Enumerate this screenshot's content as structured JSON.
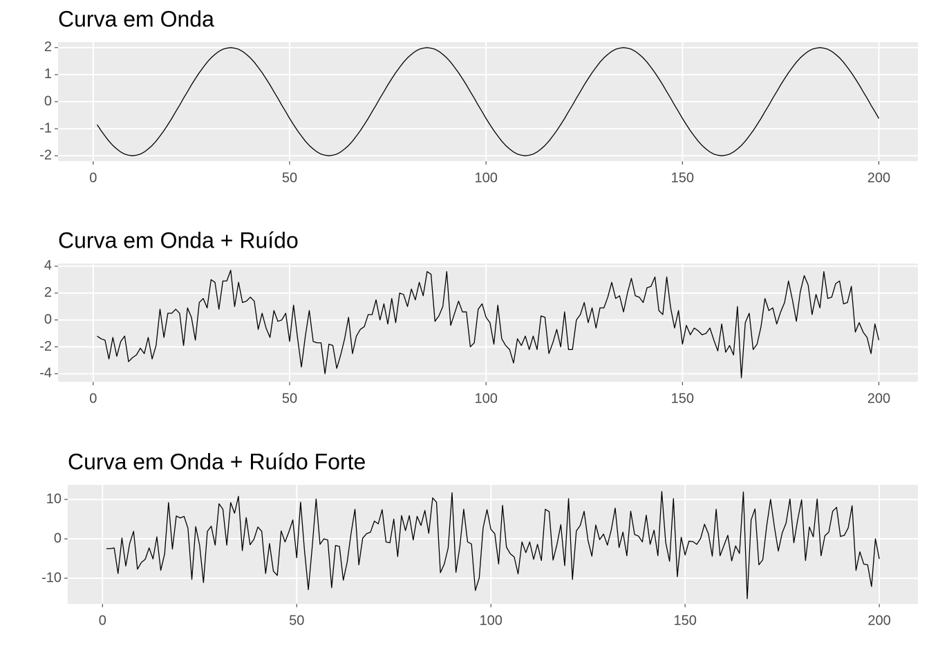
{
  "chart_data": [
    {
      "type": "line",
      "title": "Curva em Onda",
      "color": "#000000",
      "grid": true,
      "xlim": [
        -8.95,
        209.95
      ],
      "ylim": [
        -2.2,
        2.2
      ],
      "xticks": [
        0,
        50,
        100,
        150,
        200
      ],
      "yticks": [
        -2,
        -1,
        0,
        1,
        2
      ],
      "x": [
        1,
        2,
        3,
        4,
        5,
        6,
        7,
        8,
        9,
        10,
        11,
        12,
        13,
        14,
        15,
        16,
        17,
        18,
        19,
        20,
        21,
        22,
        23,
        24,
        25,
        26,
        27,
        28,
        29,
        30,
        31,
        32,
        33,
        34,
        35,
        36,
        37,
        38,
        39,
        40,
        41,
        42,
        43,
        44,
        45,
        46,
        47,
        48,
        49,
        50,
        51,
        52,
        53,
        54,
        55,
        56,
        57,
        58,
        59,
        60,
        61,
        62,
        63,
        64,
        65,
        66,
        67,
        68,
        69,
        70,
        71,
        72,
        73,
        74,
        75,
        76,
        77,
        78,
        79,
        80,
        81,
        82,
        83,
        84,
        85,
        86,
        87,
        88,
        89,
        90,
        91,
        92,
        93,
        94,
        95,
        96,
        97,
        98,
        99,
        100,
        101,
        102,
        103,
        104,
        105,
        106,
        107,
        108,
        109,
        110,
        111,
        112,
        113,
        114,
        115,
        116,
        117,
        118,
        119,
        120,
        121,
        122,
        123,
        124,
        125,
        126,
        127,
        128,
        129,
        130,
        131,
        132,
        133,
        134,
        135,
        136,
        137,
        138,
        139,
        140,
        141,
        142,
        143,
        144,
        145,
        146,
        147,
        148,
        149,
        150,
        151,
        152,
        153,
        154,
        155,
        156,
        157,
        158,
        159,
        160,
        161,
        162,
        163,
        164,
        165,
        166,
        167,
        168,
        169,
        170,
        171,
        172,
        173,
        174,
        175,
        176,
        177,
        178,
        179,
        180,
        181,
        182,
        183,
        184,
        185,
        186,
        187,
        188,
        189,
        190,
        191,
        192,
        193,
        194,
        195,
        196,
        197,
        198,
        199,
        200
      ],
      "values": [
        -0.85,
        -1.07,
        -1.27,
        -1.46,
        -1.62,
        -1.75,
        -1.86,
        -1.94,
        -1.98,
        -2,
        -1.98,
        -1.94,
        -1.86,
        -1.75,
        -1.62,
        -1.46,
        -1.27,
        -1.07,
        -0.85,
        -0.62,
        -0.37,
        -0.13,
        0.13,
        0.37,
        0.62,
        0.85,
        1.07,
        1.27,
        1.46,
        1.62,
        1.75,
        1.86,
        1.94,
        1.98,
        2,
        1.98,
        1.94,
        1.86,
        1.75,
        1.62,
        1.46,
        1.27,
        1.07,
        0.85,
        0.62,
        0.37,
        0.13,
        -0.13,
        -0.37,
        -0.62,
        -0.85,
        -1.07,
        -1.27,
        -1.46,
        -1.62,
        -1.75,
        -1.86,
        -1.94,
        -1.98,
        -2,
        -1.98,
        -1.94,
        -1.86,
        -1.75,
        -1.62,
        -1.46,
        -1.27,
        -1.07,
        -0.85,
        -0.62,
        -0.37,
        -0.13,
        0.13,
        0.37,
        0.62,
        0.85,
        1.07,
        1.27,
        1.46,
        1.62,
        1.75,
        1.86,
        1.94,
        1.98,
        2,
        1.98,
        1.94,
        1.86,
        1.75,
        1.62,
        1.46,
        1.27,
        1.07,
        0.85,
        0.62,
        0.37,
        0.13,
        -0.13,
        -0.37,
        -0.62,
        -0.85,
        -1.07,
        -1.27,
        -1.46,
        -1.62,
        -1.75,
        -1.86,
        -1.94,
        -1.98,
        -2,
        -1.98,
        -1.94,
        -1.86,
        -1.75,
        -1.62,
        -1.46,
        -1.27,
        -1.07,
        -0.85,
        -0.62,
        -0.37,
        -0.13,
        0.13,
        0.37,
        0.62,
        0.85,
        1.07,
        1.27,
        1.46,
        1.62,
        1.75,
        1.86,
        1.94,
        1.98,
        2,
        1.98,
        1.94,
        1.86,
        1.75,
        1.62,
        1.46,
        1.27,
        1.07,
        0.85,
        0.62,
        0.37,
        0.13,
        -0.13,
        -0.37,
        -0.62,
        -0.85,
        -1.07,
        -1.27,
        -1.46,
        -1.62,
        -1.75,
        -1.86,
        -1.94,
        -1.98,
        -2,
        -1.98,
        -1.94,
        -1.86,
        -1.75,
        -1.62,
        -1.46,
        -1.27,
        -1.07,
        -0.85,
        -0.62,
        -0.37,
        -0.13,
        0.13,
        0.37,
        0.62,
        0.85,
        1.07,
        1.27,
        1.46,
        1.62,
        1.75,
        1.86,
        1.94,
        1.98,
        2,
        1.98,
        1.94,
        1.86,
        1.75,
        1.62,
        1.46,
        1.27,
        1.07,
        0.85,
        0.62,
        0.37,
        0.13,
        -0.13,
        -0.37,
        -0.62
      ]
    },
    {
      "type": "line",
      "title": "Curva em Onda  + Ruído",
      "color": "#000000",
      "grid": true,
      "xlim": [
        -8.95,
        209.95
      ],
      "ylim": [
        -4.6,
        4.2
      ],
      "xticks": [
        0,
        50,
        100,
        150,
        200
      ],
      "yticks": [
        -4,
        -2,
        0,
        2,
        4
      ],
      "x": [
        1,
        2,
        3,
        4,
        5,
        6,
        7,
        8,
        9,
        10,
        11,
        12,
        13,
        14,
        15,
        16,
        17,
        18,
        19,
        20,
        21,
        22,
        23,
        24,
        25,
        26,
        27,
        28,
        29,
        30,
        31,
        32,
        33,
        34,
        35,
        36,
        37,
        38,
        39,
        40,
        41,
        42,
        43,
        44,
        45,
        46,
        47,
        48,
        49,
        50,
        51,
        52,
        53,
        54,
        55,
        56,
        57,
        58,
        59,
        60,
        61,
        62,
        63,
        64,
        65,
        66,
        67,
        68,
        69,
        70,
        71,
        72,
        73,
        74,
        75,
        76,
        77,
        78,
        79,
        80,
        81,
        82,
        83,
        84,
        85,
        86,
        87,
        88,
        89,
        90,
        91,
        92,
        93,
        94,
        95,
        96,
        97,
        98,
        99,
        100,
        101,
        102,
        103,
        104,
        105,
        106,
        107,
        108,
        109,
        110,
        111,
        112,
        113,
        114,
        115,
        116,
        117,
        118,
        119,
        120,
        121,
        122,
        123,
        124,
        125,
        126,
        127,
        128,
        129,
        130,
        131,
        132,
        133,
        134,
        135,
        136,
        137,
        138,
        139,
        140,
        141,
        142,
        143,
        144,
        145,
        146,
        147,
        148,
        149,
        150,
        151,
        152,
        153,
        154,
        155,
        156,
        157,
        158,
        159,
        160,
        161,
        162,
        163,
        164,
        165,
        166,
        167,
        168,
        169,
        170,
        171,
        172,
        173,
        174,
        175,
        176,
        177,
        178,
        179,
        180,
        181,
        182,
        183,
        184,
        185,
        186,
        187,
        188,
        189,
        190,
        191,
        192,
        193,
        194,
        195,
        196,
        197,
        198,
        199,
        200
      ],
      "values": [
        -1.2,
        -1.4,
        -1.5,
        -2.9,
        -1.3,
        -2.7,
        -1.6,
        -1.2,
        -3.1,
        -2.8,
        -2.6,
        -2.1,
        -2.5,
        -1.3,
        -2.9,
        -1.9,
        0.8,
        -1.3,
        0.5,
        0.5,
        0.8,
        0.5,
        -1.9,
        0.9,
        0.2,
        -1.5,
        1.3,
        1.6,
        0.9,
        3.0,
        2.8,
        0.8,
        2.9,
        2.9,
        3.7,
        1.0,
        2.8,
        1.3,
        1.4,
        1.7,
        1.4,
        -0.7,
        0.5,
        -0.6,
        -1.3,
        0.7,
        -0.1,
        0.0,
        0.5,
        -1.6,
        1.1,
        -1.3,
        -3.5,
        -1.2,
        0.7,
        -1.6,
        -1.7,
        -1.7,
        -4.0,
        -1.8,
        -1.9,
        -3.6,
        -2.6,
        -1.4,
        0.2,
        -2.5,
        -1.2,
        -0.7,
        -0.5,
        0.4,
        0.4,
        1.5,
        0.0,
        1.2,
        -0.3,
        1.6,
        -0.2,
        2.0,
        1.9,
        1.0,
        2.3,
        1.5,
        2.8,
        1.8,
        3.6,
        3.4,
        -0.1,
        0.3,
        1.0,
        3.6,
        -0.4,
        0.5,
        1.4,
        0.6,
        0.6,
        -2.0,
        -1.7,
        0.8,
        1.2,
        0.2,
        -0.2,
        -1.8,
        1.1,
        -1.4,
        -1.9,
        -2.2,
        -3.2,
        -1.4,
        -1.9,
        -1.2,
        -2.2,
        -1.2,
        -2.2,
        0.3,
        0.2,
        -2.5,
        -1.7,
        -0.7,
        -2.0,
        0.6,
        -2.2,
        -2.2,
        0.0,
        0.4,
        1.3,
        -0.2,
        0.9,
        -0.6,
        0.9,
        0.9,
        1.7,
        2.8,
        1.6,
        1.8,
        0.6,
        2.0,
        3.1,
        1.8,
        1.7,
        1.3,
        2.4,
        2.5,
        3.2,
        0.7,
        0.4,
        3.2,
        0.9,
        -0.6,
        0.7,
        -1.8,
        -0.4,
        -1.1,
        -0.6,
        -0.8,
        -1.1,
        -1.0,
        -0.6,
        -1.5,
        -2.3,
        -0.3,
        -2.4,
        -1.9,
        -2.6,
        1.0,
        -4.3,
        -0.2,
        0.5,
        -2.2,
        -1.8,
        -0.5,
        1.6,
        0.7,
        0.9,
        -0.3,
        0.6,
        1.3,
        2.9,
        1.5,
        -0.1,
        2.1,
        3.3,
        2.6,
        0.4,
        1.9,
        0.9,
        3.6,
        1.6,
        1.7,
        2.7,
        2.9,
        1.2,
        1.3,
        2.5,
        -0.9,
        -0.2,
        -0.9,
        -1.3,
        -2.5,
        -0.3,
        -1.5
      ]
    },
    {
      "type": "line",
      "title": "Curva em Onda + Ruído Forte",
      "color": "#000000",
      "grid": true,
      "xlim": [
        -8.95,
        209.95
      ],
      "ylim": [
        -16.5,
        13.7
      ],
      "xticks": [
        0,
        50,
        100,
        150,
        200
      ],
      "yticks": [
        -10,
        0,
        10
      ],
      "x": [
        1,
        2,
        3,
        4,
        5,
        6,
        7,
        8,
        9,
        10,
        11,
        12,
        13,
        14,
        15,
        16,
        17,
        18,
        19,
        20,
        21,
        22,
        23,
        24,
        25,
        26,
        27,
        28,
        29,
        30,
        31,
        32,
        33,
        34,
        35,
        36,
        37,
        38,
        39,
        40,
        41,
        42,
        43,
        44,
        45,
        46,
        47,
        48,
        49,
        50,
        51,
        52,
        53,
        54,
        55,
        56,
        57,
        58,
        59,
        60,
        61,
        62,
        63,
        64,
        65,
        66,
        67,
        68,
        69,
        70,
        71,
        72,
        73,
        74,
        75,
        76,
        77,
        78,
        79,
        80,
        81,
        82,
        83,
        84,
        85,
        86,
        87,
        88,
        89,
        90,
        91,
        92,
        93,
        94,
        95,
        96,
        97,
        98,
        99,
        100,
        101,
        102,
        103,
        104,
        105,
        106,
        107,
        108,
        109,
        110,
        111,
        112,
        113,
        114,
        115,
        116,
        117,
        118,
        119,
        120,
        121,
        122,
        123,
        124,
        125,
        126,
        127,
        128,
        129,
        130,
        131,
        132,
        133,
        134,
        135,
        136,
        137,
        138,
        139,
        140,
        141,
        142,
        143,
        144,
        145,
        146,
        147,
        148,
        149,
        150,
        151,
        152,
        153,
        154,
        155,
        156,
        157,
        158,
        159,
        160,
        161,
        162,
        163,
        164,
        165,
        166,
        167,
        168,
        169,
        170,
        171,
        172,
        173,
        174,
        175,
        176,
        177,
        178,
        179,
        180,
        181,
        182,
        183,
        184,
        185,
        186,
        187,
        188,
        189,
        190,
        191,
        192,
        193,
        194,
        195,
        196,
        197,
        198,
        199,
        200
      ],
      "values": [
        -2.5,
        -2.5,
        -2.3,
        -8.8,
        0.2,
        -6.9,
        -1.2,
        1.9,
        -7.7,
        -6.0,
        -5.2,
        -2.3,
        -5.1,
        0.5,
        -8.0,
        -3.8,
        9.2,
        -2.6,
        5.8,
        5.3,
        5.7,
        2.7,
        -10.3,
        3.1,
        -1.6,
        -11.1,
        1.9,
        3.2,
        -1.6,
        8.9,
        7.5,
        -1.6,
        9.2,
        6.5,
        10.8,
        -3.0,
        5.4,
        -1.5,
        -0.1,
        3.0,
        1.9,
        -8.8,
        -1.2,
        -8.2,
        -9.3,
        2.0,
        -0.8,
        1.8,
        4.8,
        -4.8,
        9.3,
        -2.9,
        -12.9,
        -2.0,
        10.1,
        -1.4,
        0.0,
        -0.3,
        -12.4,
        -1.7,
        -1.9,
        -10.5,
        -5.9,
        1.4,
        7.5,
        -6.6,
        0.2,
        1.3,
        1.7,
        4.5,
        3.8,
        7.4,
        -0.8,
        -1.0,
        5.0,
        -4.5,
        5.9,
        2.1,
        5.9,
        -0.3,
        5.7,
        3.4,
        7.2,
        1.4,
        10.4,
        9.3,
        -8.6,
        -6.4,
        -2.3,
        11.7,
        -8.5,
        -2.0,
        7.5,
        -0.8,
        -1.3,
        -13.1,
        -9.9,
        2.8,
        7.4,
        2.4,
        1.3,
        -6.4,
        8.5,
        -2.1,
        -3.8,
        -4.6,
        -8.9,
        -0.8,
        -3.5,
        -0.8,
        -5.2,
        -1.4,
        -5.5,
        7.5,
        6.9,
        -5.4,
        -1.5,
        3.6,
        -6.8,
        10.2,
        -10.3,
        2.0,
        3.4,
        7.0,
        -0.4,
        -4.4,
        3.5,
        -0.2,
        1.2,
        -1.6,
        2.3,
        7.8,
        -2.2,
        1.7,
        -4.3,
        7.0,
        1.1,
        0.7,
        -0.8,
        6.0,
        -1.4,
        2.2,
        -4.3,
        12.0,
        -0.9,
        -5.7,
        10.2,
        -9.6,
        0.4,
        -4.1,
        -0.6,
        -0.7,
        -1.4,
        0.1,
        3.7,
        1.3,
        -4.4,
        7.5,
        -4.3,
        -1.7,
        0.9,
        -5.6,
        -1.8,
        -3.7,
        11.9,
        -15.2,
        4.8,
        7.6,
        -6.6,
        -5.3,
        3.2,
        10.0,
        3.0,
        -3.1,
        1.5,
        4.0,
        10.1,
        -1.0,
        4.9,
        9.9,
        -5.5,
        3.0,
        0.5,
        10.1,
        -4.3,
        0.8,
        1.7,
        7.0,
        8.0,
        0.6,
        0.9,
        2.8,
        8.4,
        -8.0,
        -3.3,
        -6.4,
        -6.6,
        -12.1,
        0.0,
        -5.1
      ]
    }
  ]
}
